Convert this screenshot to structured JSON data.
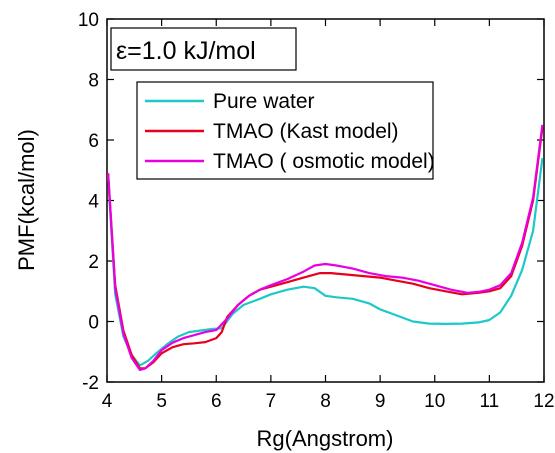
{
  "chart_data": {
    "type": "line",
    "title": "",
    "xlabel": "Rg(Angstrom)",
    "ylabel": "PMF(kcal/mol)",
    "xlim": [
      4,
      12
    ],
    "ylim": [
      -2,
      10
    ],
    "xticks": [
      4,
      5,
      6,
      7,
      8,
      9,
      10,
      11,
      12
    ],
    "yticks": [
      -2,
      0,
      2,
      4,
      6,
      8,
      10
    ],
    "grid": false,
    "legend_position": "upper-center",
    "annotation": "ε=1.0 kJ/mol",
    "series": [
      {
        "name": "Pure water",
        "color": "#1ec8c8",
        "x": [
          4.02,
          4.15,
          4.3,
          4.45,
          4.6,
          4.75,
          4.9,
          5.1,
          5.3,
          5.5,
          5.7,
          5.9,
          6.1,
          6.3,
          6.5,
          6.8,
          7.0,
          7.3,
          7.6,
          7.8,
          8.0,
          8.2,
          8.5,
          8.8,
          9.0,
          9.3,
          9.6,
          9.9,
          10.2,
          10.5,
          10.8,
          11.0,
          11.2,
          11.4,
          11.6,
          11.8,
          11.97
        ],
        "y": [
          4.8,
          0.9,
          -0.5,
          -1.1,
          -1.45,
          -1.3,
          -1.05,
          -0.75,
          -0.5,
          -0.35,
          -0.3,
          -0.25,
          -0.22,
          0.25,
          0.55,
          0.75,
          0.9,
          1.05,
          1.15,
          1.1,
          0.85,
          0.8,
          0.75,
          0.6,
          0.4,
          0.2,
          0.0,
          -0.07,
          -0.08,
          -0.07,
          -0.03,
          0.05,
          0.3,
          0.85,
          1.7,
          3.0,
          5.4
        ]
      },
      {
        "name": "TMAO (Kast model)",
        "color": "#e8001c",
        "x": [
          4.02,
          4.15,
          4.3,
          4.45,
          4.6,
          4.7,
          4.85,
          5.0,
          5.2,
          5.4,
          5.6,
          5.8,
          6.0,
          6.1,
          6.2,
          6.4,
          6.6,
          6.8,
          7.0,
          7.3,
          7.6,
          7.9,
          8.1,
          8.4,
          8.7,
          9.0,
          9.3,
          9.6,
          9.9,
          10.2,
          10.5,
          10.8,
          11.0,
          11.2,
          11.4,
          11.6,
          11.8,
          11.97
        ],
        "y": [
          4.9,
          1.2,
          -0.3,
          -1.1,
          -1.55,
          -1.55,
          -1.35,
          -1.05,
          -0.85,
          -0.75,
          -0.72,
          -0.68,
          -0.55,
          -0.35,
          0.15,
          0.55,
          0.85,
          1.05,
          1.15,
          1.3,
          1.45,
          1.6,
          1.6,
          1.55,
          1.5,
          1.45,
          1.35,
          1.25,
          1.1,
          1.0,
          0.9,
          0.95,
          1.0,
          1.1,
          1.5,
          2.5,
          4.0,
          6.4
        ]
      },
      {
        "name": "TMAO ( osmotic model)",
        "color": "#e800e0",
        "x": [
          4.02,
          4.15,
          4.3,
          4.45,
          4.6,
          4.7,
          4.85,
          5.0,
          5.2,
          5.4,
          5.6,
          5.8,
          6.0,
          6.2,
          6.4,
          6.6,
          6.8,
          7.0,
          7.3,
          7.6,
          7.8,
          8.0,
          8.2,
          8.5,
          8.8,
          9.1,
          9.4,
          9.7,
          10.0,
          10.3,
          10.6,
          10.8,
          11.0,
          11.2,
          11.4,
          11.6,
          11.8,
          11.97
        ],
        "y": [
          4.9,
          1.1,
          -0.4,
          -1.2,
          -1.6,
          -1.55,
          -1.3,
          -0.95,
          -0.7,
          -0.55,
          -0.45,
          -0.35,
          -0.28,
          0.1,
          0.55,
          0.85,
          1.05,
          1.2,
          1.4,
          1.65,
          1.85,
          1.9,
          1.85,
          1.75,
          1.6,
          1.5,
          1.45,
          1.35,
          1.2,
          1.05,
          0.95,
          0.98,
          1.05,
          1.2,
          1.6,
          2.6,
          4.1,
          6.5
        ]
      }
    ]
  }
}
